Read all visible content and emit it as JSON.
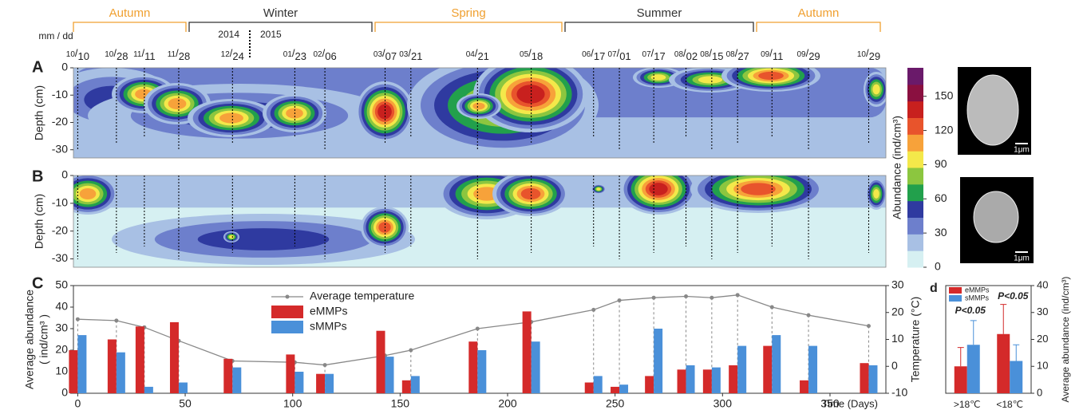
{
  "header": {
    "seasons": [
      "Autumn",
      "Winter",
      "Spring",
      "Summer",
      "Autumn"
    ],
    "season_colors": [
      "#f0a030",
      "#333333",
      "#f0a030",
      "#333333",
      "#f0a030"
    ],
    "date_format": "mm / dd",
    "years": [
      "2014",
      "2015"
    ],
    "dates": [
      [
        "10",
        "10"
      ],
      [
        "10",
        "28"
      ],
      [
        "11",
        "11"
      ],
      [
        "11",
        "28"
      ],
      [
        "12",
        "24"
      ],
      [
        "01",
        "23"
      ],
      [
        "02",
        "06"
      ],
      [
        "03",
        "07"
      ],
      [
        "03",
        "21"
      ],
      [
        "04",
        "21"
      ],
      [
        "05",
        "18"
      ],
      [
        "06",
        "17"
      ],
      [
        "07",
        "01"
      ],
      [
        "07",
        "17"
      ],
      [
        "08",
        "02"
      ],
      [
        "08",
        "15"
      ],
      [
        "08",
        "27"
      ],
      [
        "09",
        "11"
      ],
      [
        "09",
        "29"
      ],
      [
        "10",
        "29"
      ]
    ]
  },
  "panel_labels": [
    "A",
    "B",
    "C",
    "d"
  ],
  "contour": {
    "ylabel": "Depth (cm)",
    "ylim": [
      -33,
      0
    ],
    "yticks": [
      0,
      -10,
      -20,
      -30
    ]
  },
  "colorbar": {
    "label": "Abundance (ind/cm³)",
    "lim": [
      0,
      175
    ],
    "ticks": [
      0,
      30,
      60,
      90,
      120,
      150
    ],
    "colors": [
      "#d6f0f2",
      "#a8c0e4",
      "#6d7fcc",
      "#2f3aa0",
      "#22a04c",
      "#8cc63f",
      "#f4e84a",
      "#f7a23a",
      "#e8542c",
      "#c8201e",
      "#8a1040",
      "#6a1a6a"
    ]
  },
  "scale_bars": [
    "1μm",
    "1μm"
  ],
  "chart_data": [
    {
      "type": "bar",
      "ylabel": [
        "Average abundance",
        "( ind/cm³ )"
      ],
      "xlabel": "Time (Days)",
      "y2label": "Temperature (°C)",
      "x": [
        0,
        18,
        31,
        47,
        72,
        101,
        115,
        143,
        155,
        186,
        211,
        240,
        252,
        268,
        283,
        295,
        307,
        323,
        340,
        368
      ],
      "xlim": [
        -2,
        376
      ],
      "xticks": [
        0,
        50,
        100,
        150,
        200,
        250,
        300,
        350
      ],
      "ylim": [
        0,
        50
      ],
      "yticks": [
        0,
        10,
        20,
        30,
        40,
        50
      ],
      "y2lim": [
        -10,
        30
      ],
      "y2ticks": [
        -10,
        0,
        10,
        20,
        30
      ],
      "series": [
        {
          "name": "Average temperature",
          "color": "#888888",
          "axis": "y2",
          "type": "line",
          "values": [
            17.5,
            17,
            14.5,
            9.5,
            2,
            1.5,
            0.5,
            4,
            6,
            14,
            16.5,
            21,
            24.5,
            25.5,
            26,
            25.5,
            26.5,
            22,
            19,
            15
          ]
        },
        {
          "name": "eMMPs",
          "color": "#d42a2a",
          "values": [
            20,
            25,
            31,
            33,
            16,
            18,
            9,
            29,
            6,
            24,
            38,
            5,
            3,
            8,
            11,
            11,
            13,
            22,
            6,
            14
          ]
        },
        {
          "name": "sMMPs",
          "color": "#4a90d9",
          "values": [
            27,
            19,
            3,
            5,
            12,
            10,
            9,
            17,
            8,
            20,
            24,
            8,
            4,
            30,
            13,
            12,
            22,
            27,
            22,
            13
          ]
        }
      ]
    },
    {
      "type": "bar",
      "categories": [
        ">18℃",
        "<18℃"
      ],
      "ylabel": "Average abundance (ind/cm³)",
      "ylim": [
        0,
        40
      ],
      "yticks": [
        0,
        10,
        20,
        30,
        40
      ],
      "annotations": [
        "P<0.05",
        "P<0.05"
      ],
      "series": [
        {
          "name": "eMMPs",
          "color": "#d42a2a",
          "values": [
            10,
            22
          ],
          "errors": [
            7,
            11
          ]
        },
        {
          "name": "sMMPs",
          "color": "#4a90d9",
          "values": [
            18,
            12
          ],
          "errors": [
            9,
            6
          ]
        }
      ]
    }
  ]
}
